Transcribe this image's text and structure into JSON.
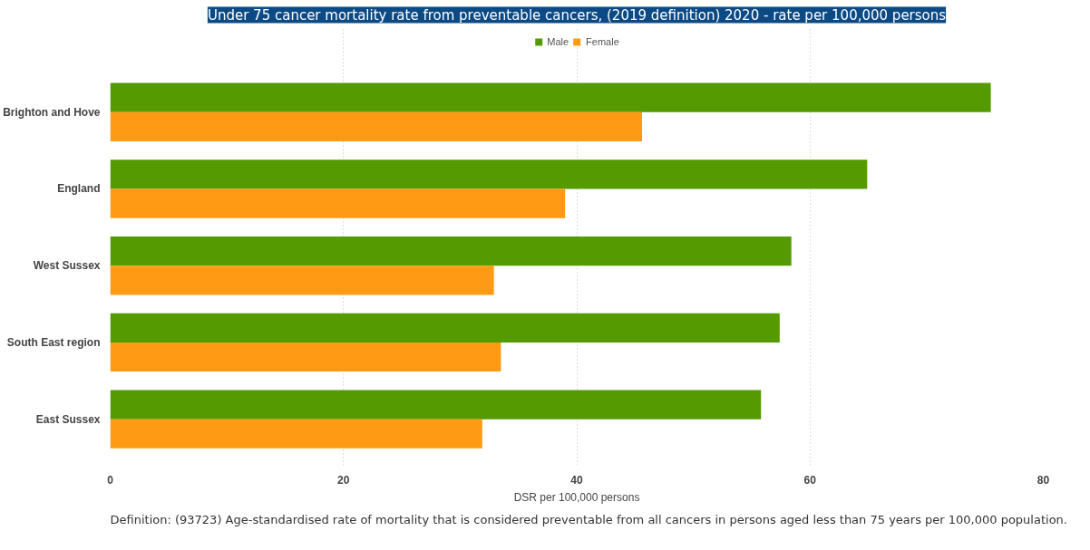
{
  "chart_data": {
    "type": "bar",
    "orientation": "horizontal",
    "title": "Under 75 cancer mortality rate from preventable cancers, (2019 definition) 2020 - rate per 100,000 persons",
    "xlabel": "DSR per 100,000 persons",
    "categories": [
      "Brighton and Hove",
      "England",
      "West Sussex",
      "South East region",
      "East Sussex"
    ],
    "series": [
      {
        "name": "Male",
        "color": "#559a00",
        "values": [
          75.5,
          64.9,
          58.4,
          57.4,
          55.8
        ]
      },
      {
        "name": "Female",
        "color": "#ff9a15",
        "values": [
          45.6,
          39.0,
          32.9,
          33.5,
          31.9
        ]
      }
    ],
    "xlim": [
      0,
      80
    ],
    "xticks": [
      0,
      20,
      40,
      60,
      80
    ],
    "grid": "x",
    "legend": "top",
    "annotations": [
      "Definition: (93723)  Age-standardised rate of mortality that is considered preventable from all cancers in persons aged less than 75 years per 100,000 population."
    ]
  }
}
